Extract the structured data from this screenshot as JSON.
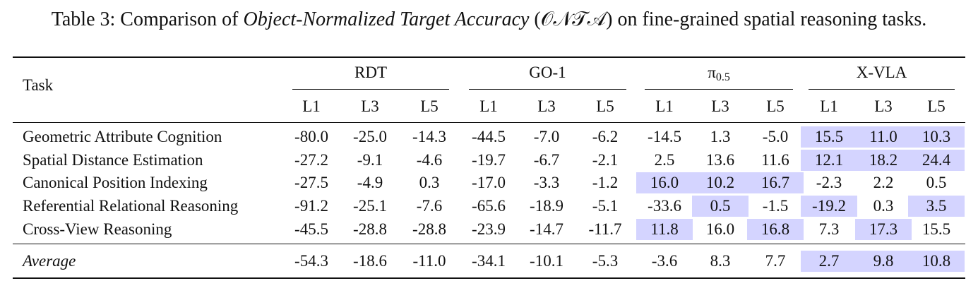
{
  "caption": {
    "prefix": "Table 3: Comparison of ",
    "metric_name": "Object-Normalized Target Accuracy",
    "open_paren": " (",
    "metric_abbr": "𝒪𝒩𝒯𝒜",
    "suffix": ") on fine-grained spatial reasoning tasks."
  },
  "header": {
    "task": "Task",
    "groups": [
      {
        "label": "RDT",
        "sub": ""
      },
      {
        "label": "GO-1",
        "sub": ""
      },
      {
        "label": "π",
        "sub": "0.5"
      },
      {
        "label": "X-VLA",
        "sub": ""
      }
    ],
    "levels": [
      "L1",
      "L3",
      "L5",
      "L1",
      "L3",
      "L5",
      "L1",
      "L3",
      "L5",
      "L1",
      "L3",
      "L5"
    ]
  },
  "rows": [
    {
      "task": "Geometric Attribute Cognition",
      "values": [
        "-80.0",
        "-25.0",
        "-14.3",
        "-44.5",
        "-7.0",
        "-6.2",
        "-14.5",
        "1.3",
        "-5.0",
        "15.5",
        "11.0",
        "10.3"
      ],
      "highlight": [
        false,
        false,
        false,
        false,
        false,
        false,
        false,
        false,
        false,
        true,
        true,
        true
      ]
    },
    {
      "task": "Spatial Distance Estimation",
      "values": [
        "-27.2",
        "-9.1",
        "-4.6",
        "-19.7",
        "-6.7",
        "-2.1",
        "2.5",
        "13.6",
        "11.6",
        "12.1",
        "18.2",
        "24.4"
      ],
      "highlight": [
        false,
        false,
        false,
        false,
        false,
        false,
        false,
        false,
        false,
        true,
        true,
        true
      ]
    },
    {
      "task": "Canonical Position Indexing",
      "values": [
        "-27.5",
        "-4.9",
        "0.3",
        "-17.0",
        "-3.3",
        "-1.2",
        "16.0",
        "10.2",
        "16.7",
        "-2.3",
        "2.2",
        "0.5"
      ],
      "highlight": [
        false,
        false,
        false,
        false,
        false,
        false,
        true,
        true,
        true,
        false,
        false,
        false
      ]
    },
    {
      "task": "Referential Relational Reasoning",
      "values": [
        "-91.2",
        "-25.1",
        "-7.6",
        "-65.6",
        "-18.9",
        "-5.1",
        "-33.6",
        "0.5",
        "-1.5",
        "-19.2",
        "0.3",
        "3.5"
      ],
      "highlight": [
        false,
        false,
        false,
        false,
        false,
        false,
        false,
        true,
        false,
        true,
        false,
        true
      ]
    },
    {
      "task": "Cross-View Reasoning",
      "values": [
        "-45.5",
        "-28.8",
        "-28.8",
        "-23.9",
        "-14.7",
        "-11.7",
        "11.8",
        "16.0",
        "16.8",
        "7.3",
        "17.3",
        "15.5"
      ],
      "highlight": [
        false,
        false,
        false,
        false,
        false,
        false,
        true,
        false,
        true,
        false,
        true,
        false
      ]
    }
  ],
  "average": {
    "task": "Average",
    "values": [
      "-54.3",
      "-18.6",
      "-11.0",
      "-34.1",
      "-10.1",
      "-5.3",
      "-3.6",
      "8.3",
      "7.7",
      "2.7",
      "9.8",
      "10.8"
    ],
    "highlight": [
      false,
      false,
      false,
      false,
      false,
      false,
      false,
      false,
      false,
      true,
      true,
      true
    ]
  },
  "colors": {
    "highlight": "#d4d4ff",
    "rule": "#111111"
  }
}
